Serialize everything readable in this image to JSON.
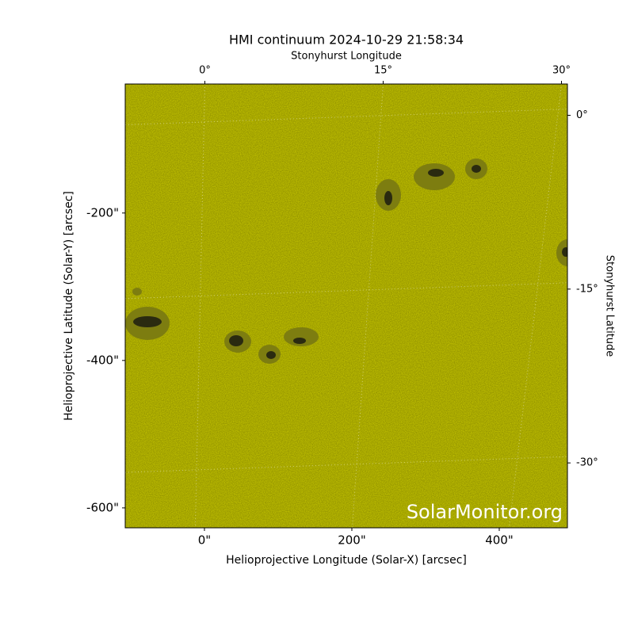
{
  "chart_data": {
    "type": "image",
    "title": "HMI continuum 2024-10-29 21:58:34",
    "xlabel": "Helioprojective Longitude (Solar-X) [arcsec]",
    "ylabel": "Helioprojective Latitude (Solar-Y) [arcsec]",
    "x2label": "Stonyhurst Longitude",
    "y2label": "Stonyhurst Latitude",
    "watermark": "SolarMonitor.org",
    "xlim": [
      -107.5,
      492.5
    ],
    "ylim": [
      -627,
      -25
    ],
    "xticks": [
      {
        "value": 0,
        "label": "0\""
      },
      {
        "value": 200,
        "label": "200\""
      },
      {
        "value": 400,
        "label": "400\""
      }
    ],
    "yticks": [
      {
        "value": -200,
        "label": "-200\""
      },
      {
        "value": -400,
        "label": "-400\""
      },
      {
        "value": -600,
        "label": "-600\""
      }
    ],
    "x2lim": [
      -6.7,
      30.5
    ],
    "x2ticks": [
      {
        "value": 0,
        "label": "0°"
      },
      {
        "value": 15,
        "label": "15°"
      },
      {
        "value": 30,
        "label": "30°"
      }
    ],
    "y2lim": [
      -35.6,
      2.7
    ],
    "y2ticks": [
      {
        "value": 0,
        "label": "0°"
      },
      {
        "value": -15,
        "label": "-15°"
      },
      {
        "value": -30,
        "label": "-30°"
      }
    ],
    "color": "#cccc00"
  }
}
